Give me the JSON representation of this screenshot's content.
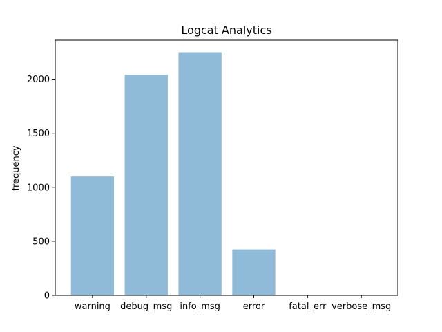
{
  "chart_data": {
    "type": "bar",
    "title": "Logcat Analytics",
    "xlabel": "",
    "ylabel": "frequency",
    "categories": [
      "warning",
      "debug_msg",
      "info_msg",
      "error",
      "fatal_err",
      "verbose_msg"
    ],
    "values": [
      1100,
      2040,
      2250,
      425,
      0,
      0
    ],
    "ylim": [
      0,
      2362
    ],
    "yticks": [
      0,
      500,
      1000,
      1500,
      2000
    ],
    "grid": false,
    "bar_color": "#8fbad8"
  }
}
